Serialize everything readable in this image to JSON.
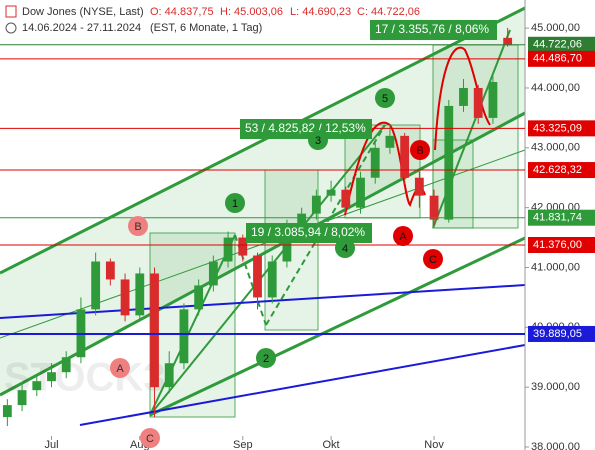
{
  "chart_data": {
    "type": "candlestick",
    "title": "Dow Jones (NYSE, Last)",
    "ohlc_header": [
      "O: 44.837,75",
      "H: 45.003,06",
      "L: 44.690,23",
      "C: 44.722,06"
    ],
    "subtitle": "14.06.2024 - 27.11.2024",
    "subtitle_note": "(EST, 6 Monate, 1 Tag)",
    "watermark": "STOCK3",
    "categories": [
      null,
      null,
      null,
      "Jul",
      null,
      null,
      null,
      null,
      null,
      "Aug",
      null,
      null,
      null,
      null,
      null,
      null,
      "Sep",
      null,
      null,
      null,
      null,
      null,
      "Okt",
      null,
      null,
      null,
      null,
      null,
      null,
      "Nov",
      null,
      null,
      null,
      null,
      null
    ],
    "open": [
      38500,
      38700,
      38950,
      39100,
      39250,
      39500,
      40300,
      41100,
      40800,
      40200,
      40900,
      39000,
      39400,
      40300,
      40700,
      41100,
      41500,
      41200,
      40500,
      41100,
      41700,
      41900,
      42200,
      42300,
      42000,
      42500,
      43000,
      43200,
      42500,
      42200,
      41800,
      43700,
      44000,
      43500,
      44837.75
    ],
    "high": [
      38800,
      39050,
      39200,
      39400,
      39600,
      40500,
      41250,
      41150,
      40900,
      41000,
      41000,
      39600,
      40400,
      40800,
      41200,
      41600,
      41550,
      41250,
      41200,
      41800,
      42000,
      42300,
      42450,
      42350,
      42600,
      43100,
      43400,
      43250,
      42600,
      42300,
      43800,
      44150,
      44050,
      44200,
      45003.06
    ],
    "low": [
      38350,
      38600,
      38850,
      39000,
      39150,
      39400,
      40200,
      40700,
      40100,
      40100,
      38500,
      38900,
      39300,
      40200,
      40600,
      41000,
      41100,
      40300,
      40400,
      41000,
      41600,
      41800,
      42100,
      41900,
      41900,
      42400,
      42900,
      42400,
      42000,
      41700,
      41750,
      43600,
      43400,
      43400,
      44690.23
    ],
    "close": [
      38700,
      38950,
      39100,
      39250,
      39500,
      40300,
      41100,
      40800,
      40200,
      40900,
      39000,
      39400,
      40300,
      40700,
      41100,
      41500,
      41200,
      40500,
      41100,
      41700,
      41900,
      42200,
      42300,
      42000,
      42500,
      43000,
      43200,
      42500,
      42200,
      41800,
      43700,
      44000,
      43500,
      44100,
      44722.06
    ],
    "up_color": "#2e9a3a",
    "down_color": "#d92b2b",
    "ylim": [
      37950,
      45470
    ],
    "yticks": [
      {
        "value": 38000,
        "label": "38.000,00"
      },
      {
        "value": 39000,
        "label": "39.000,00"
      },
      {
        "value": 40000,
        "label": "40.000,00"
      },
      {
        "value": 41000,
        "label": "41.000,00"
      },
      {
        "value": 42000,
        "label": "42.000,00"
      },
      {
        "value": 43000,
        "label": "43.000,00"
      },
      {
        "value": 44000,
        "label": "44.000,00"
      },
      {
        "value": 45000,
        "label": "45.000,00"
      }
    ],
    "levels": [
      {
        "value": 44722.06,
        "label": "44.722,06",
        "color": "#2e7d32"
      },
      {
        "value": 44486.7,
        "label": "44.486,70",
        "color": "#e00000"
      },
      {
        "value": 43325.09,
        "label": "43.325,09",
        "color": "#e00000"
      },
      {
        "value": 42628.32,
        "label": "42.628,32",
        "color": "#e00000"
      },
      {
        "value": 41831.74,
        "label": "41.831,74",
        "color": "#2e9a3a"
      },
      {
        "value": 41376.0,
        "label": "41.376,00",
        "color": "#e00000"
      },
      {
        "value": 39889.05,
        "label": "39.889,05",
        "color": "#1a1ad8"
      }
    ],
    "annotations": [
      "17 / 3.355,76 / 8,06%",
      "53 / 4.825,82 / 12,53%",
      "19 / 3.085,94 / 8,02%"
    ],
    "wave_labels": [
      "1",
      "2",
      "3",
      "4",
      "5",
      "A",
      "B",
      "C",
      "A",
      "B",
      "C"
    ]
  }
}
